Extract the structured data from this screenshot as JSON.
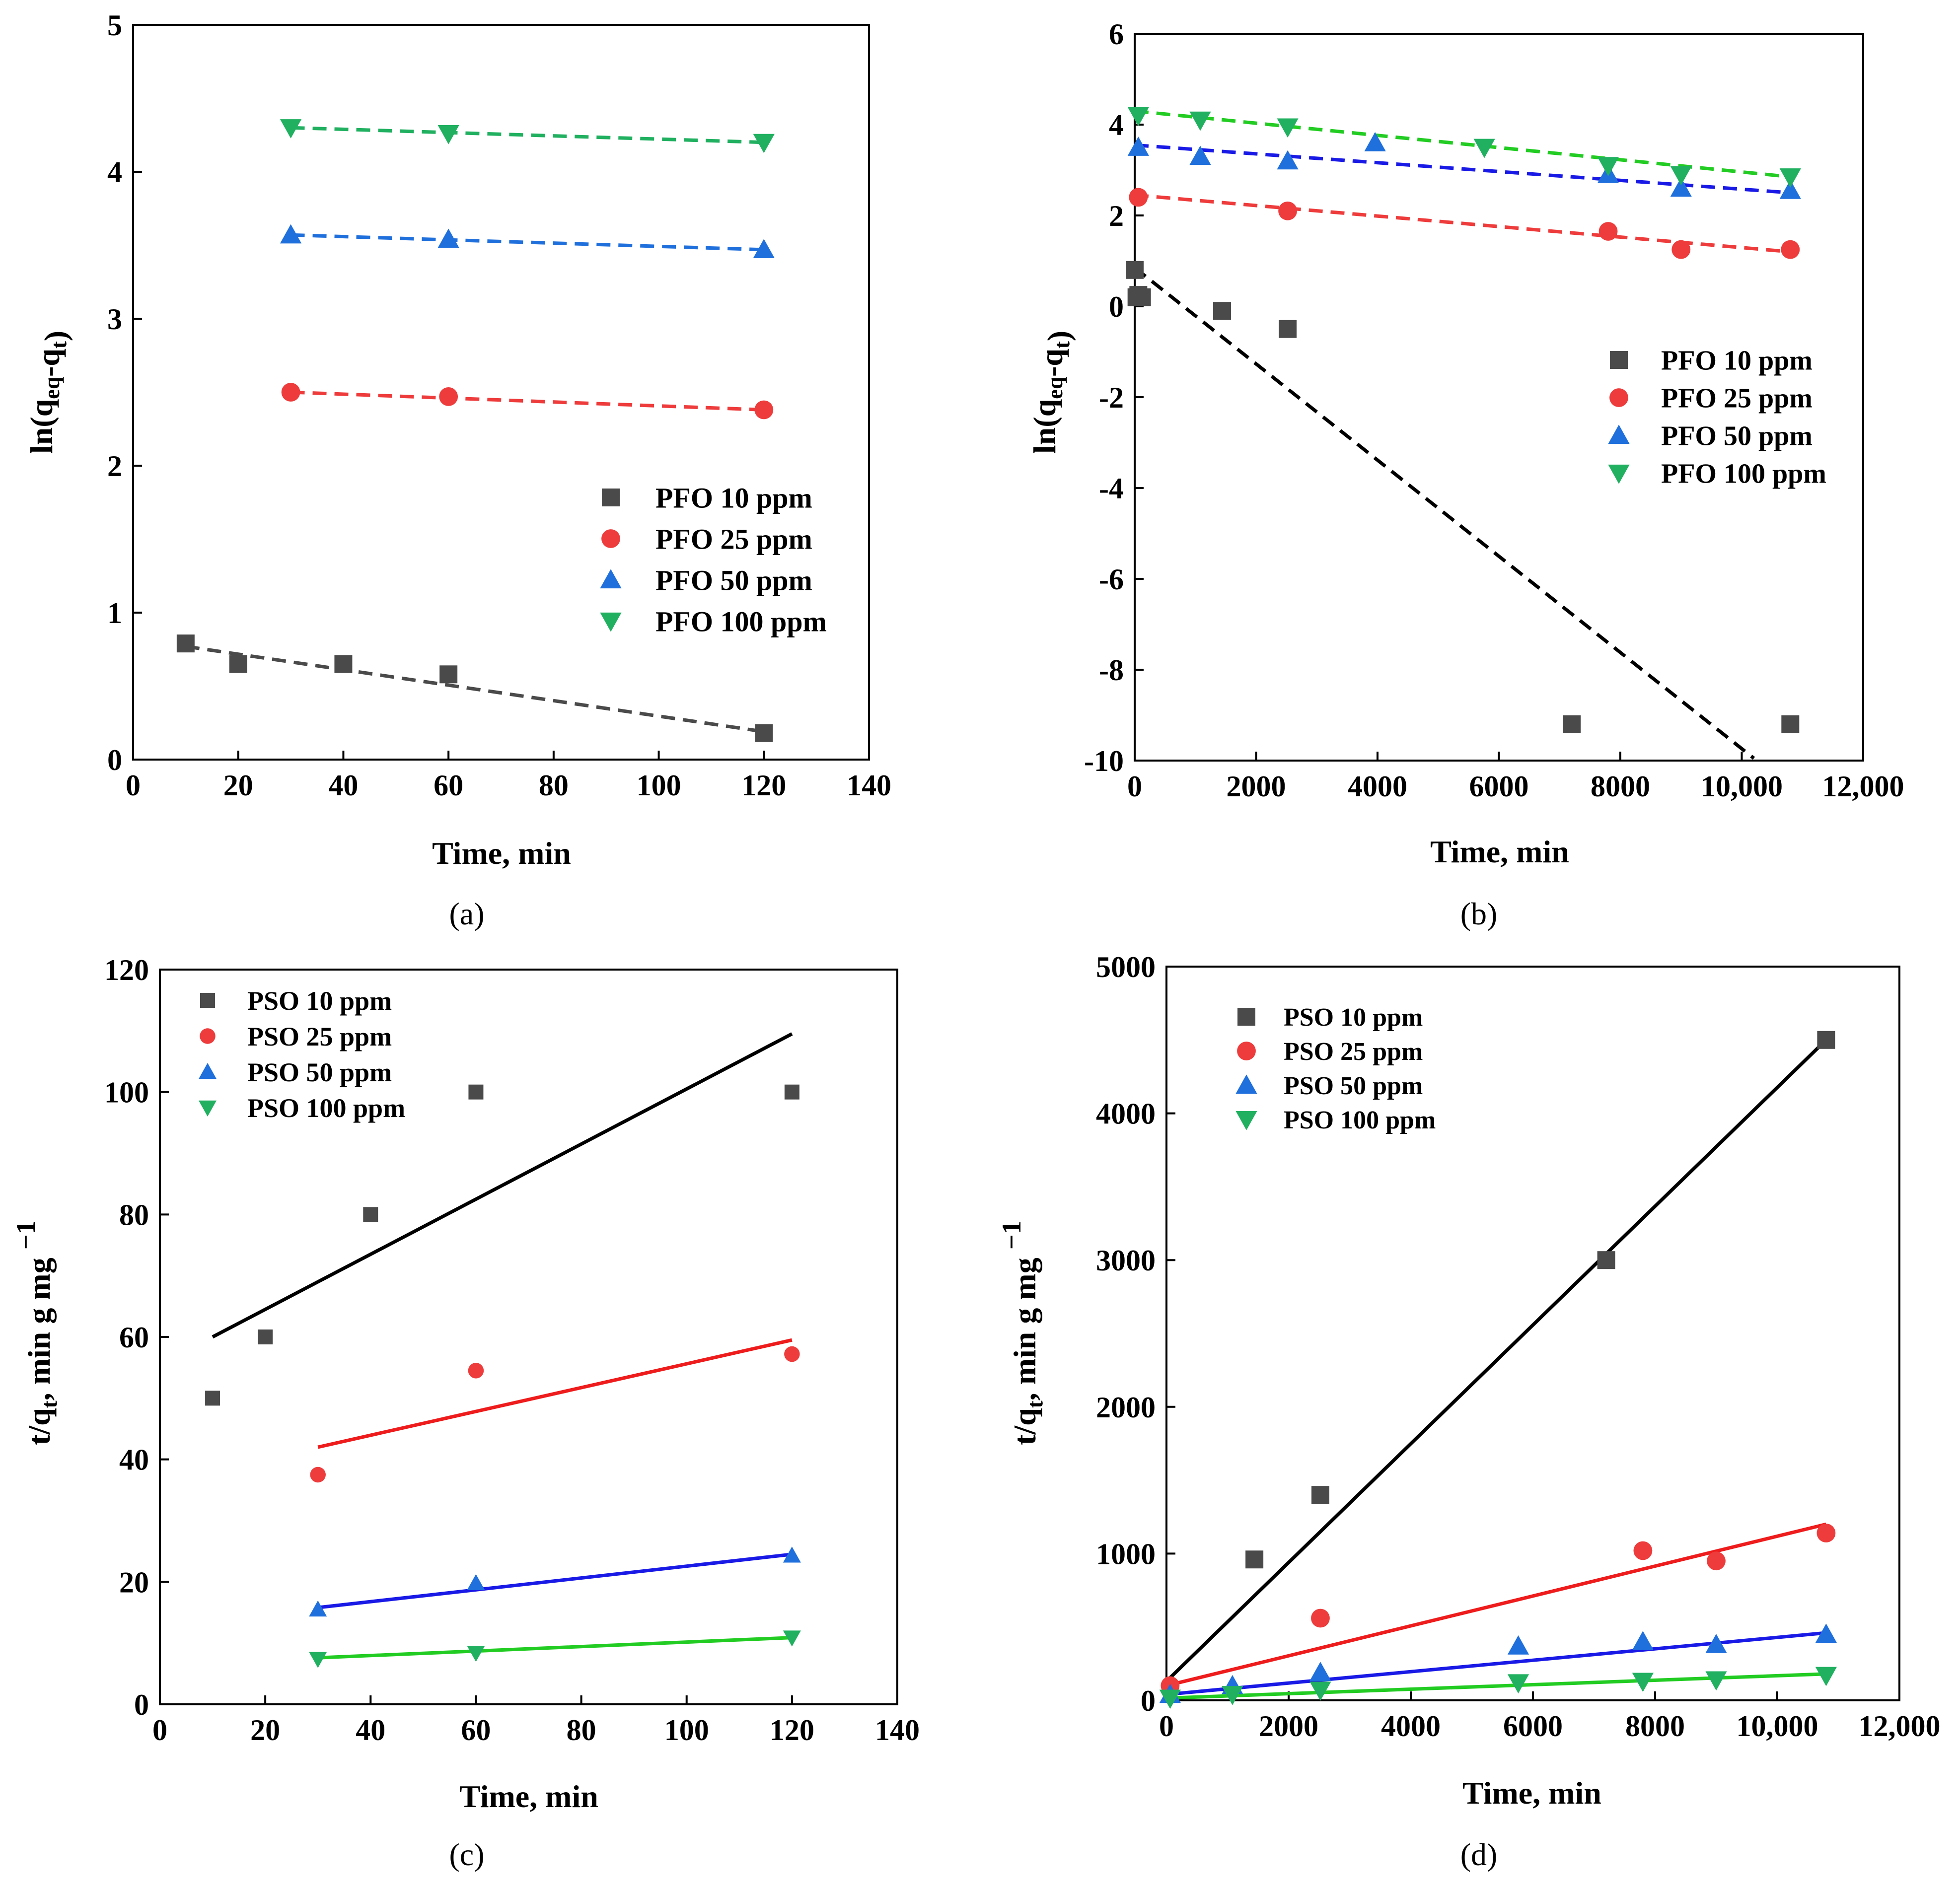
{
  "colors": {
    "s10": "#4a4a4a",
    "s25": "#ee3b3b",
    "s50": "#1f6fdc",
    "s100": "#20b060",
    "fit10": "#000000",
    "fit25": "#ee1c1c",
    "fit50": "#1a1ae6",
    "fit100": "#22cc22"
  },
  "chart_data": [
    {
      "id": "a",
      "panel_label": "(a)",
      "type": "scatter",
      "fit_style": "dashed",
      "xlabel": "Time, min",
      "ylabel": "ln(q_eq-q_t)",
      "xlim": [
        0,
        140
      ],
      "ylim": [
        0,
        5
      ],
      "xticks": [
        "0",
        "20",
        "40",
        "60",
        "80",
        "100",
        "120",
        "140"
      ],
      "yticks": [
        "0",
        "1",
        "2",
        "3",
        "4",
        "5"
      ],
      "legend_position": "center-right",
      "series": [
        {
          "name": "PFO 10 ppm",
          "marker": "square",
          "color": "s10",
          "fit_color": "s10",
          "x": [
            10,
            20,
            40,
            60,
            120
          ],
          "y": [
            0.79,
            0.65,
            0.65,
            0.58,
            0.18
          ],
          "fit": [
            [
              10,
              0.77
            ],
            [
              120,
              0.19
            ]
          ]
        },
        {
          "name": "PFO 25 ppm",
          "marker": "circle",
          "color": "s25",
          "fit_color": "s25",
          "x": [
            30,
            60,
            120
          ],
          "y": [
            2.5,
            2.47,
            2.38
          ],
          "fit": [
            [
              30,
              2.5
            ],
            [
              120,
              2.38
            ]
          ]
        },
        {
          "name": "PFO 50 ppm",
          "marker": "triangle-up",
          "color": "s50",
          "fit_color": "s50",
          "x": [
            30,
            60,
            120
          ],
          "y": [
            3.57,
            3.54,
            3.47
          ],
          "fit": [
            [
              30,
              3.57
            ],
            [
              120,
              3.47
            ]
          ]
        },
        {
          "name": "PFO 100 ppm",
          "marker": "triangle-down",
          "color": "s100",
          "fit_color": "s100",
          "x": [
            30,
            60,
            120
          ],
          "y": [
            4.3,
            4.26,
            4.2
          ],
          "fit": [
            [
              30,
              4.3
            ],
            [
              120,
              4.2
            ]
          ]
        }
      ]
    },
    {
      "id": "b",
      "panel_label": "(b)",
      "type": "scatter",
      "fit_style": "dashed",
      "xlabel": "Time, min",
      "ylabel": "ln(q_eq-q_t)",
      "xlim": [
        0,
        12000
      ],
      "ylim": [
        -10,
        6
      ],
      "xticks": [
        "0",
        "2000",
        "4000",
        "6000",
        "8000",
        "10,000",
        "12,000"
      ],
      "yticks": [
        "-10",
        "-8",
        "-6",
        "-4",
        "-2",
        "0",
        "2",
        "4",
        "6"
      ],
      "legend_position": "center-right",
      "series": [
        {
          "name": "PFO 10 ppm",
          "marker": "square",
          "color": "s10",
          "fit_color": "fit10",
          "x": [
            0,
            30,
            60,
            120,
            1440,
            2520,
            7200,
            10800
          ],
          "y": [
            0.8,
            0.2,
            0.25,
            0.2,
            -0.1,
            -0.5,
            -9.2,
            -9.2
          ],
          "fit": [
            [
              0,
              0.85
            ],
            [
              10200,
              -9.95
            ]
          ]
        },
        {
          "name": "PFO 25 ppm",
          "marker": "circle",
          "color": "s25",
          "fit_color": "s25",
          "x": [
            60,
            2520,
            7800,
            9000,
            10800
          ],
          "y": [
            2.4,
            2.1,
            1.65,
            1.25,
            1.25
          ],
          "fit": [
            [
              0,
              2.45
            ],
            [
              10800,
              1.2
            ]
          ]
        },
        {
          "name": "PFO 50 ppm",
          "marker": "triangle-up",
          "color": "s50",
          "fit_color": "fit50",
          "x": [
            60,
            1080,
            2520,
            3960,
            7800,
            9000,
            10800
          ],
          "y": [
            3.5,
            3.3,
            3.2,
            3.6,
            2.9,
            2.6,
            2.55
          ],
          "fit": [
            [
              0,
              3.55
            ],
            [
              10800,
              2.5
            ]
          ]
        },
        {
          "name": "PFO 100 ppm",
          "marker": "triangle-down",
          "color": "s100",
          "fit_color": "fit100",
          "x": [
            60,
            1080,
            2520,
            5760,
            7800,
            9000,
            10800
          ],
          "y": [
            4.2,
            4.1,
            3.95,
            3.5,
            3.1,
            2.9,
            2.85
          ],
          "fit": [
            [
              0,
              4.3
            ],
            [
              10800,
              2.85
            ]
          ]
        }
      ]
    },
    {
      "id": "c",
      "panel_label": "(c)",
      "type": "scatter",
      "fit_style": "solid",
      "xlabel": "Time, min",
      "ylabel": "t/q_t, min g mg^-1",
      "xlim": [
        0,
        140
      ],
      "ylim": [
        0,
        120
      ],
      "xticks": [
        "0",
        "20",
        "40",
        "60",
        "80",
        "100",
        "120",
        "140"
      ],
      "yticks": [
        "0",
        "20",
        "40",
        "60",
        "80",
        "100",
        "120"
      ],
      "legend_position": "top-left",
      "series": [
        {
          "name": "PSO 10 ppm",
          "marker": "square",
          "color": "s10",
          "fit_color": "fit10",
          "x": [
            10,
            20,
            40,
            60,
            120
          ],
          "y": [
            50,
            60,
            80,
            100,
            100
          ],
          "fit": [
            [
              10,
              60
            ],
            [
              120,
              109.5
            ]
          ]
        },
        {
          "name": "PSO 25 ppm",
          "marker": "circle",
          "color": "s25",
          "fit_color": "fit25",
          "x": [
            30,
            60,
            120
          ],
          "y": [
            37.5,
            54.5,
            57.2
          ],
          "fit": [
            [
              30,
              42
            ],
            [
              120,
              59.5
            ]
          ]
        },
        {
          "name": "PSO 50 ppm",
          "marker": "triangle-up",
          "color": "s50",
          "fit_color": "fit50",
          "x": [
            30,
            60,
            120
          ],
          "y": [
            15.5,
            19.8,
            24.3
          ],
          "fit": [
            [
              30,
              15.8
            ],
            [
              120,
              24.5
            ]
          ]
        },
        {
          "name": "PSO 100 ppm",
          "marker": "triangle-down",
          "color": "s100",
          "fit_color": "fit100",
          "x": [
            30,
            60,
            120
          ],
          "y": [
            7.4,
            8.4,
            10.9
          ],
          "fit": [
            [
              30,
              7.6
            ],
            [
              120,
              10.9
            ]
          ]
        }
      ]
    },
    {
      "id": "d",
      "panel_label": "(d)",
      "type": "scatter",
      "fit_style": "solid",
      "xlabel": "Time, min",
      "ylabel": "t/q_t, min g mg^-1",
      "xlim": [
        0,
        12000
      ],
      "ylim": [
        0,
        5000
      ],
      "xticks": [
        "0",
        "2000",
        "4000",
        "6000",
        "8000",
        "10,000",
        "12,000"
      ],
      "yticks": [
        "0",
        "1000",
        "2000",
        "3000",
        "4000",
        "5000"
      ],
      "legend_position": "top-left",
      "series": [
        {
          "name": "PSO 10 ppm",
          "marker": "square",
          "color": "s10",
          "fit_color": "fit10",
          "x": [
            1440,
            2520,
            7200,
            10800
          ],
          "y": [
            960,
            1400,
            3000,
            4500
          ],
          "fit": [
            [
              0,
              130
            ],
            [
              10800,
              4500
            ]
          ]
        },
        {
          "name": "PSO 25 ppm",
          "marker": "circle",
          "color": "s25",
          "fit_color": "fit25",
          "x": [
            60,
            2520,
            7800,
            9000,
            10800
          ],
          "y": [
            100,
            560,
            1020,
            950,
            1140
          ],
          "fit": [
            [
              0,
              100
            ],
            [
              10800,
              1200
            ]
          ]
        },
        {
          "name": "PSO 50 ppm",
          "marker": "triangle-up",
          "color": "s50",
          "fit_color": "fit50",
          "x": [
            60,
            1080,
            2520,
            5760,
            7800,
            9000,
            10800
          ],
          "y": [
            40,
            100,
            190,
            370,
            400,
            380,
            450
          ],
          "fit": [
            [
              0,
              40
            ],
            [
              10800,
              460
            ]
          ]
        },
        {
          "name": "PSO 100 ppm",
          "marker": "triangle-down",
          "color": "s100",
          "fit_color": "fit100",
          "x": [
            60,
            1080,
            2520,
            5760,
            7800,
            9000,
            10800
          ],
          "y": [
            15,
            40,
            70,
            120,
            130,
            140,
            170
          ],
          "fit": [
            [
              0,
              15
            ],
            [
              10800,
              180
            ]
          ]
        }
      ]
    }
  ]
}
